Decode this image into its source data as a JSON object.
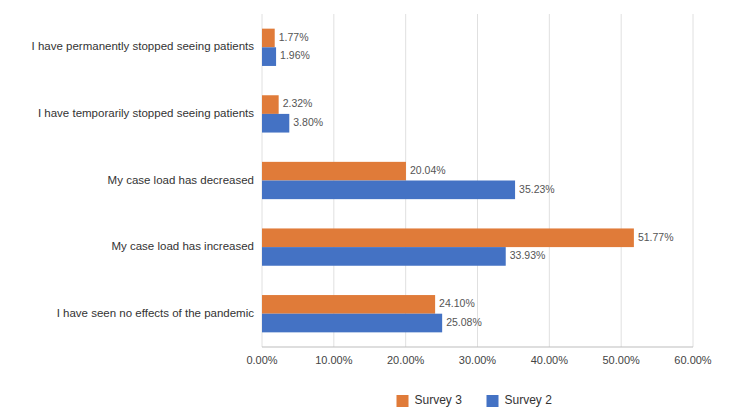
{
  "chart_data": {
    "type": "bar",
    "orientation": "horizontal",
    "categories": [
      "I have permanently stopped seeing patients",
      "I have temporarily stopped seeing patients",
      "My case load has decreased",
      "My case load has increased",
      "I have seen no effects of the pandemic"
    ],
    "series": [
      {
        "name": "Survey 3",
        "color": "#E07B39",
        "values": [
          1.77,
          2.32,
          20.04,
          51.77,
          24.1
        ],
        "value_labels": [
          "1.77%",
          "2.32%",
          "20.04%",
          "51.77%",
          "24.10%"
        ]
      },
      {
        "name": "Survey 2",
        "color": "#4472C4",
        "values": [
          1.96,
          3.8,
          35.23,
          33.93,
          25.08
        ],
        "value_labels": [
          "1.96%",
          "3.80%",
          "35.23%",
          "33.93%",
          "25.08%"
        ]
      }
    ],
    "xlim": [
      0,
      60
    ],
    "xticks": [
      {
        "value": 0,
        "label": "0.00%"
      },
      {
        "value": 10,
        "label": "10.00%"
      },
      {
        "value": 20,
        "label": "20.00%"
      },
      {
        "value": 30,
        "label": "30.00%"
      },
      {
        "value": 40,
        "label": "40.00%"
      },
      {
        "value": 50,
        "label": "50.00%"
      },
      {
        "value": 60,
        "label": "60.00%"
      }
    ],
    "grid": true,
    "data_labels": true,
    "legend": "bottom"
  }
}
